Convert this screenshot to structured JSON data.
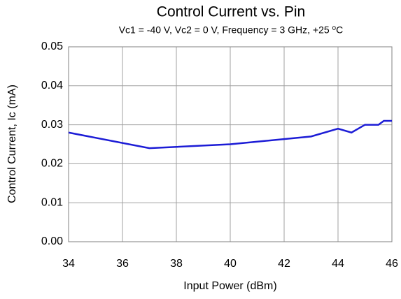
{
  "chart_data": {
    "type": "line",
    "title": "Control Current vs. Pin",
    "subtitle": "Vc1 = -40 V, Vc2 = 0 V, Frequency = 3 GHz, +25 ⁰C",
    "xlabel": "Input Power (dBm)",
    "ylabel": "Control Current, Ic (mA)",
    "x": [
      34,
      37,
      40,
      43,
      44,
      44.5,
      45,
      45.5,
      45.7,
      46
    ],
    "values": [
      0.028,
      0.024,
      0.025,
      0.027,
      0.029,
      0.028,
      0.03,
      0.03,
      0.031,
      0.031
    ],
    "color": "#1c1cd6",
    "xlim": [
      34,
      46
    ],
    "xticks": [
      34,
      36,
      38,
      40,
      42,
      44,
      46
    ],
    "ylim": [
      0,
      0.05
    ],
    "yticks": [
      {
        "value": 0,
        "label": "0.00"
      },
      0.01,
      0.02,
      0.03,
      0.04,
      0.05
    ],
    "grid": true
  }
}
